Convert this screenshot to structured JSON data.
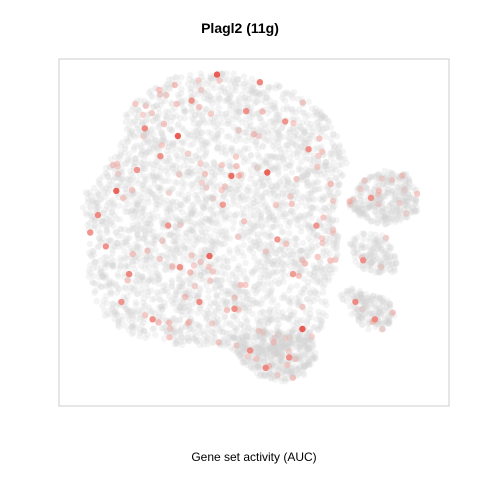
{
  "chart_data": {
    "type": "scatter",
    "title": "Plagl2 (11g)",
    "caption": "Gene set activity (AUC)",
    "xlabel": "",
    "ylabel": "",
    "grid": false,
    "legend": "none",
    "xlim": [
      0,
      100
    ],
    "ylim": [
      0,
      100
    ],
    "colors": {
      "background_cells": "#d3d3d3",
      "low": "#f6c3bd",
      "high": "#e8473b",
      "frame": "#cccccc"
    },
    "clusters": [
      {
        "name": "main",
        "polygon": [
          [
            6,
            58
          ],
          [
            8,
            48
          ],
          [
            7,
            38
          ],
          [
            10,
            28
          ],
          [
            14,
            22
          ],
          [
            20,
            20
          ],
          [
            26,
            19
          ],
          [
            32,
            17
          ],
          [
            40,
            18
          ],
          [
            45,
            16
          ],
          [
            50,
            15
          ],
          [
            56,
            15
          ],
          [
            62,
            17
          ],
          [
            67,
            21
          ],
          [
            69,
            28
          ],
          [
            68,
            34
          ],
          [
            71,
            40
          ],
          [
            72,
            48
          ],
          [
            71,
            56
          ],
          [
            72,
            63
          ],
          [
            74,
            70
          ],
          [
            72,
            76
          ],
          [
            70,
            82
          ],
          [
            66,
            86
          ],
          [
            62,
            90
          ],
          [
            55,
            93
          ],
          [
            45,
            96
          ],
          [
            38,
            96
          ],
          [
            30,
            95
          ],
          [
            24,
            92
          ],
          [
            20,
            88
          ],
          [
            17,
            84
          ],
          [
            17,
            78
          ],
          [
            14,
            72
          ],
          [
            10,
            66
          ],
          [
            7,
            62
          ]
        ],
        "density": 3200
      },
      {
        "name": "bottom",
        "polygon": [
          [
            44,
            20
          ],
          [
            47,
            12
          ],
          [
            52,
            8
          ],
          [
            58,
            7
          ],
          [
            63,
            9
          ],
          [
            66,
            14
          ],
          [
            65,
            20
          ],
          [
            60,
            22
          ],
          [
            52,
            22
          ]
        ],
        "density": 420
      },
      {
        "name": "right-top",
        "polygon": [
          [
            74,
            58
          ],
          [
            77,
            55
          ],
          [
            82,
            52
          ],
          [
            87,
            53
          ],
          [
            92,
            56
          ],
          [
            92,
            62
          ],
          [
            89,
            67
          ],
          [
            84,
            68
          ],
          [
            79,
            66
          ],
          [
            76,
            62
          ]
        ],
        "density": 340
      },
      {
        "name": "right-mid",
        "polygon": [
          [
            74,
            47
          ],
          [
            76,
            41
          ],
          [
            80,
            38
          ],
          [
            86,
            38
          ],
          [
            87,
            44
          ],
          [
            84,
            49
          ],
          [
            78,
            50
          ]
        ],
        "density": 150
      },
      {
        "name": "right-low",
        "polygon": [
          [
            72,
            32
          ],
          [
            75,
            26
          ],
          [
            79,
            22
          ],
          [
            84,
            22
          ],
          [
            86,
            26
          ],
          [
            85,
            30
          ],
          [
            80,
            33
          ],
          [
            75,
            34
          ]
        ],
        "density": 180
      }
    ],
    "highlights": [
      {
        "x": 40.5,
        "y": 95.5,
        "v": 0.95
      },
      {
        "x": 51.5,
        "y": 93.3,
        "v": 0.6
      },
      {
        "x": 30.5,
        "y": 77.8,
        "v": 0.95
      },
      {
        "x": 44.2,
        "y": 66.3,
        "v": 0.8
      },
      {
        "x": 53.4,
        "y": 67.3,
        "v": 0.9
      },
      {
        "x": 14.7,
        "y": 62.0,
        "v": 0.9
      },
      {
        "x": 38.6,
        "y": 43.2,
        "v": 0.85
      },
      {
        "x": 62.4,
        "y": 22.2,
        "v": 0.95
      },
      {
        "x": 22.0,
        "y": 80.0,
        "v": 0.55
      },
      {
        "x": 26.0,
        "y": 72.0,
        "v": 0.5
      },
      {
        "x": 34.0,
        "y": 88.0,
        "v": 0.45
      },
      {
        "x": 48.0,
        "y": 85.0,
        "v": 0.5
      },
      {
        "x": 58.0,
        "y": 82.0,
        "v": 0.45
      },
      {
        "x": 64.0,
        "y": 74.0,
        "v": 0.5
      },
      {
        "x": 10.0,
        "y": 55.0,
        "v": 0.55
      },
      {
        "x": 12.0,
        "y": 46.0,
        "v": 0.5
      },
      {
        "x": 18.0,
        "y": 38.0,
        "v": 0.55
      },
      {
        "x": 16.0,
        "y": 30.0,
        "v": 0.45
      },
      {
        "x": 24.0,
        "y": 25.0,
        "v": 0.5
      },
      {
        "x": 31.0,
        "y": 40.0,
        "v": 0.5
      },
      {
        "x": 36.0,
        "y": 30.0,
        "v": 0.55
      },
      {
        "x": 45.0,
        "y": 28.0,
        "v": 0.5
      },
      {
        "x": 49.0,
        "y": 16.0,
        "v": 0.5
      },
      {
        "x": 53.0,
        "y": 11.0,
        "v": 0.55
      },
      {
        "x": 59.0,
        "y": 14.0,
        "v": 0.5
      },
      {
        "x": 56.0,
        "y": 48.0,
        "v": 0.45
      },
      {
        "x": 66.0,
        "y": 52.0,
        "v": 0.45
      },
      {
        "x": 80.0,
        "y": 60.0,
        "v": 0.45
      },
      {
        "x": 78.0,
        "y": 42.0,
        "v": 0.5
      },
      {
        "x": 76.0,
        "y": 30.0,
        "v": 0.55
      },
      {
        "x": 81.0,
        "y": 25.0,
        "v": 0.5
      },
      {
        "x": 20.0,
        "y": 68.0,
        "v": 0.45
      },
      {
        "x": 42.0,
        "y": 58.0,
        "v": 0.4
      },
      {
        "x": 28.0,
        "y": 52.0,
        "v": 0.45
      },
      {
        "x": 60.0,
        "y": 38.0,
        "v": 0.4
      },
      {
        "x": 8.0,
        "y": 50.0,
        "v": 0.45
      }
    ]
  }
}
